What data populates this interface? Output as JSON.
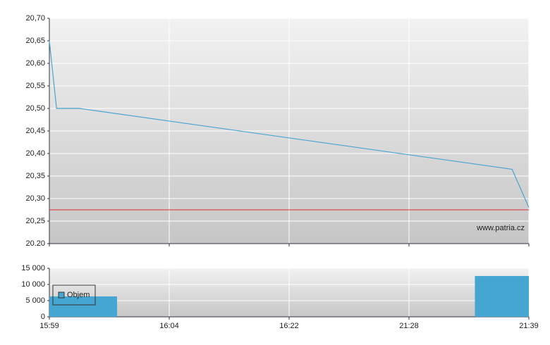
{
  "chart_data": [
    {
      "type": "line",
      "x": [
        0,
        0.06,
        0.25,
        3.86,
        4
      ],
      "values": [
        20.65,
        20.5,
        20.5,
        20.365,
        20.28
      ],
      "color": "#4aa3d0",
      "reference_line": 20.275,
      "reference_color": "#e03030",
      "xlim": [
        0,
        4
      ],
      "xticks": [
        {
          "value": 0,
          "label": "15:59"
        },
        {
          "value": 1,
          "label": "16:04"
        },
        {
          "value": 2,
          "label": "16:22"
        },
        {
          "value": 3,
          "label": "21:28"
        },
        {
          "value": 4,
          "label": "21:39"
        }
      ],
      "ylim": [
        20.2,
        20.7
      ],
      "yticks": [
        {
          "value": 20.2,
          "label": "20.20"
        },
        {
          "value": 20.25,
          "label": "20,25"
        },
        {
          "value": 20.3,
          "label": "20,30"
        },
        {
          "value": 20.35,
          "label": "20,35"
        },
        {
          "value": 20.4,
          "label": "20,40"
        },
        {
          "value": 20.45,
          "label": "20,45"
        },
        {
          "value": 20.5,
          "label": "20,50"
        },
        {
          "value": 20.55,
          "label": "20,55"
        },
        {
          "value": 20.6,
          "label": "20,60"
        },
        {
          "value": 20.65,
          "label": "20,65"
        },
        {
          "value": 20.7,
          "label": "20,70"
        }
      ],
      "grid": true,
      "annotation": "www.patria.cz"
    },
    {
      "type": "bar",
      "x_start": [
        0,
        3.55
      ],
      "x_end": [
        0.565,
        4
      ],
      "series": [
        {
          "name": "Objem",
          "color": "#46a6d2",
          "values": [
            6300,
            12600
          ]
        }
      ],
      "xlim": [
        0,
        4
      ],
      "xticks": [
        {
          "value": 0,
          "label": "15:59"
        },
        {
          "value": 1,
          "label": "16:04"
        },
        {
          "value": 2,
          "label": "16:22"
        },
        {
          "value": 3,
          "label": "21:28"
        },
        {
          "value": 4,
          "label": "21:39"
        }
      ],
      "ylim": [
        0,
        15000
      ],
      "yticks": [
        0,
        {
          "value": 5000,
          "label": "5 000"
        },
        {
          "value": 10000,
          "label": "10 000"
        },
        {
          "value": 15000,
          "label": "15 000"
        }
      ],
      "grid": true,
      "legend": "upper-left"
    }
  ]
}
